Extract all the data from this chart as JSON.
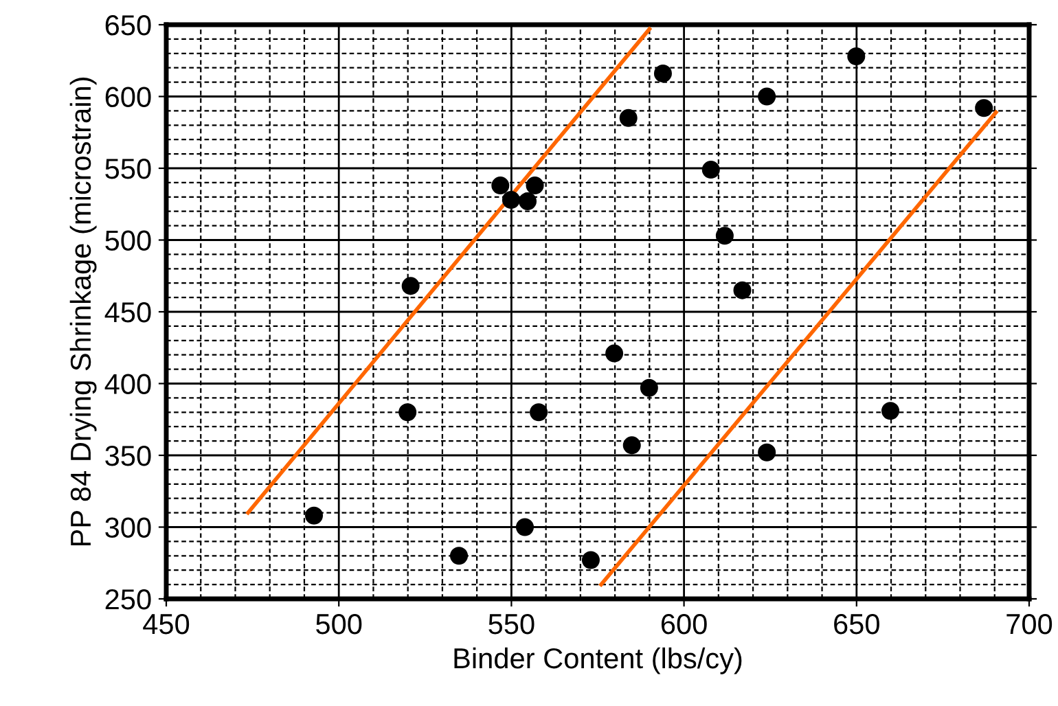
{
  "chart_data": {
    "type": "scatter",
    "xlabel": "Binder Content (lbs/cy)",
    "ylabel": "PP 84 Drying Shrinkage (microstrain)",
    "xlim": [
      450,
      700
    ],
    "xticks": [
      450,
      500,
      550,
      600,
      650,
      700
    ],
    "ylim": [
      250,
      650
    ],
    "yticks": [
      250,
      300,
      350,
      400,
      450,
      500,
      550,
      600,
      650
    ],
    "grid": true,
    "marker": "circle",
    "series": [
      {
        "color": "#000000",
        "x": [
          492.8,
          519.9,
          520.8,
          534.8,
          546.8,
          549.9,
          554.7,
          556.8,
          557.9,
          553.9,
          573.0,
          593.9,
          583.9,
          649.9,
          624.0,
          686.9,
          607.8,
          611.8,
          616.9,
          579.8,
          589.9,
          584.9,
          624.0,
          659.8
        ],
        "values": [
          308,
          380,
          468,
          280,
          538,
          528,
          527,
          538,
          380,
          300,
          277,
          616,
          585,
          628,
          600,
          592,
          549,
          503,
          465,
          421,
          397,
          357,
          352,
          381
        ]
      },
      {
        "type": "line",
        "color": "#ff6600",
        "marker": "none",
        "x": [
          473.7,
          590.0
        ],
        "values": [
          310,
          647
        ]
      },
      {
        "type": "line",
        "color": "#ff6600",
        "marker": "none",
        "x": [
          576.0,
          690.4
        ],
        "values": [
          260,
          589
        ]
      }
    ]
  }
}
